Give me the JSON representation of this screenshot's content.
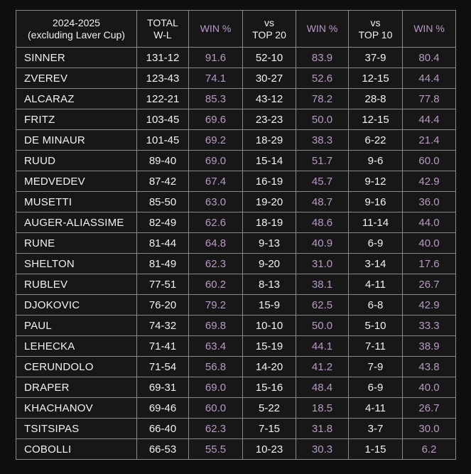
{
  "chart_data": {
    "type": "table",
    "header": {
      "season_line1": "2024-2025",
      "season_line2": "(excluding Laver Cup)",
      "total_line1": "TOTAL",
      "total_line2": "W-L",
      "win_pct": "WIN %",
      "vs": "vs",
      "top20": "TOP 20",
      "top10": "TOP 10"
    },
    "rows": [
      {
        "player": "SINNER",
        "total_wl": "131-12",
        "total_pct": "91.6",
        "top20_wl": "52-10",
        "top20_pct": "83.9",
        "top10_wl": "37-9",
        "top10_pct": "80.4"
      },
      {
        "player": "ZVEREV",
        "total_wl": "123-43",
        "total_pct": "74.1",
        "top20_wl": "30-27",
        "top20_pct": "52.6",
        "top10_wl": "12-15",
        "top10_pct": "44.4"
      },
      {
        "player": "ALCARAZ",
        "total_wl": "122-21",
        "total_pct": "85.3",
        "top20_wl": "43-12",
        "top20_pct": "78.2",
        "top10_wl": "28-8",
        "top10_pct": "77.8"
      },
      {
        "player": "FRITZ",
        "total_wl": "103-45",
        "total_pct": "69.6",
        "top20_wl": "23-23",
        "top20_pct": "50.0",
        "top10_wl": "12-15",
        "top10_pct": "44.4"
      },
      {
        "player": "DE MINAUR",
        "total_wl": "101-45",
        "total_pct": "69.2",
        "top20_wl": "18-29",
        "top20_pct": "38.3",
        "top10_wl": "6-22",
        "top10_pct": "21.4"
      },
      {
        "player": "RUUD",
        "total_wl": "89-40",
        "total_pct": "69.0",
        "top20_wl": "15-14",
        "top20_pct": "51.7",
        "top10_wl": "9-6",
        "top10_pct": "60.0"
      },
      {
        "player": "MEDVEDEV",
        "total_wl": "87-42",
        "total_pct": "67.4",
        "top20_wl": "16-19",
        "top20_pct": "45.7",
        "top10_wl": "9-12",
        "top10_pct": "42.9"
      },
      {
        "player": "MUSETTI",
        "total_wl": "85-50",
        "total_pct": "63.0",
        "top20_wl": "19-20",
        "top20_pct": "48.7",
        "top10_wl": "9-16",
        "top10_pct": "36.0"
      },
      {
        "player": "AUGER-ALIASSIME",
        "total_wl": "82-49",
        "total_pct": "62.6",
        "top20_wl": "18-19",
        "top20_pct": "48.6",
        "top10_wl": "11-14",
        "top10_pct": "44.0"
      },
      {
        "player": "RUNE",
        "total_wl": "81-44",
        "total_pct": "64.8",
        "top20_wl": "9-13",
        "top20_pct": "40.9",
        "top10_wl": "6-9",
        "top10_pct": "40.0"
      },
      {
        "player": "SHELTON",
        "total_wl": "81-49",
        "total_pct": "62.3",
        "top20_wl": "9-20",
        "top20_pct": "31.0",
        "top10_wl": "3-14",
        "top10_pct": "17.6"
      },
      {
        "player": "RUBLEV",
        "total_wl": "77-51",
        "total_pct": "60.2",
        "top20_wl": "8-13",
        "top20_pct": "38.1",
        "top10_wl": "4-11",
        "top10_pct": "26.7"
      },
      {
        "player": "DJOKOVIC",
        "total_wl": "76-20",
        "total_pct": "79.2",
        "top20_wl": "15-9",
        "top20_pct": "62.5",
        "top10_wl": "6-8",
        "top10_pct": "42.9"
      },
      {
        "player": "PAUL",
        "total_wl": "74-32",
        "total_pct": "69.8",
        "top20_wl": "10-10",
        "top20_pct": "50.0",
        "top10_wl": "5-10",
        "top10_pct": "33.3"
      },
      {
        "player": "LEHECKA",
        "total_wl": "71-41",
        "total_pct": "63.4",
        "top20_wl": "15-19",
        "top20_pct": "44.1",
        "top10_wl": "7-11",
        "top10_pct": "38.9"
      },
      {
        "player": "CERUNDOLO",
        "total_wl": "71-54",
        "total_pct": "56.8",
        "top20_wl": "14-20",
        "top20_pct": "41.2",
        "top10_wl": "7-9",
        "top10_pct": "43.8"
      },
      {
        "player": "DRAPER",
        "total_wl": "69-31",
        "total_pct": "69.0",
        "top20_wl": "15-16",
        "top20_pct": "48.4",
        "top10_wl": "6-9",
        "top10_pct": "40.0"
      },
      {
        "player": "KHACHANOV",
        "total_wl": "69-46",
        "total_pct": "60.0",
        "top20_wl": "5-22",
        "top20_pct": "18.5",
        "top10_wl": "4-11",
        "top10_pct": "26.7"
      },
      {
        "player": "TSITSIPAS",
        "total_wl": "66-40",
        "total_pct": "62.3",
        "top20_wl": "7-15",
        "top20_pct": "31.8",
        "top10_wl": "3-7",
        "top10_pct": "30.0"
      },
      {
        "player": "COBOLLI",
        "total_wl": "66-53",
        "total_pct": "55.5",
        "top20_wl": "10-23",
        "top20_pct": "30.3",
        "top10_wl": "1-15",
        "top10_pct": "6.2"
      }
    ]
  },
  "colors": {
    "page_bg": "#0e0e0e",
    "cell_bg": "#171717",
    "border": "#8a8a8a",
    "text": "#f2f2f2",
    "accent": "#b99ac4"
  }
}
